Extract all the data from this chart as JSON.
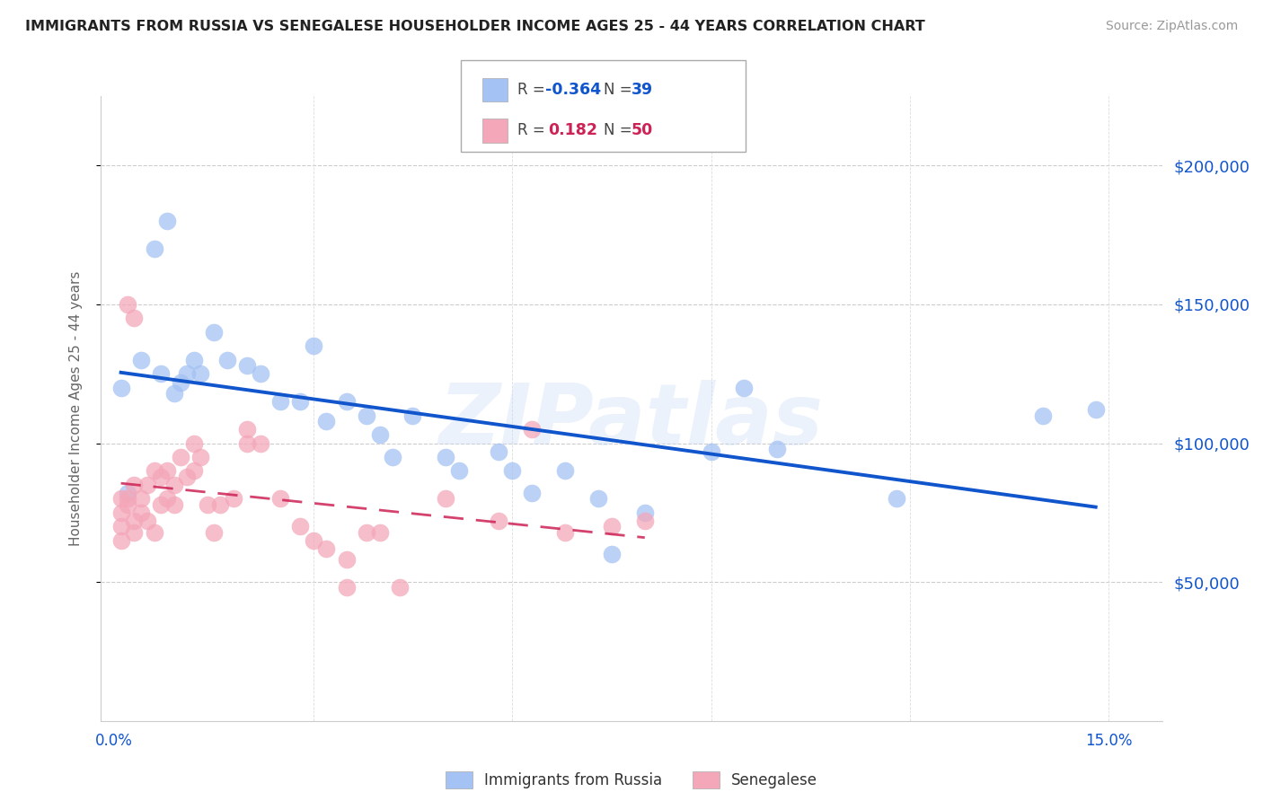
{
  "title": "IMMIGRANTS FROM RUSSIA VS SENEGALESE HOUSEHOLDER INCOME AGES 25 - 44 YEARS CORRELATION CHART",
  "source": "Source: ZipAtlas.com",
  "ylabel": "Householder Income Ages 25 - 44 years",
  "y_ticks": [
    50000,
    100000,
    150000,
    200000
  ],
  "y_tick_labels": [
    "$50,000",
    "$100,000",
    "$150,000",
    "$200,000"
  ],
  "x_tick_positions": [
    0.0,
    0.03,
    0.06,
    0.09,
    0.12,
    0.15
  ],
  "x_tick_labels": [
    "0.0%",
    "",
    "",
    "",
    "",
    "15.0%"
  ],
  "legend_r1_val": "-0.364",
  "legend_n1_val": "39",
  "legend_r2_val": "0.182",
  "legend_n2_val": "50",
  "blue_fill": "#a4c2f4",
  "pink_fill": "#f4a7b9",
  "blue_line": "#1155cc",
  "pink_line": "#cc2255",
  "title_color": "#222222",
  "source_color": "#999999",
  "right_label_color": "#1155cc",
  "background": "#ffffff",
  "blue_scatter_x": [
    0.001,
    0.004,
    0.007,
    0.009,
    0.01,
    0.011,
    0.012,
    0.013,
    0.015,
    0.017,
    0.02,
    0.022,
    0.025,
    0.028,
    0.032,
    0.038,
    0.04,
    0.045,
    0.05,
    0.052,
    0.058,
    0.063,
    0.068,
    0.073,
    0.08,
    0.09,
    0.095,
    0.1,
    0.118,
    0.14,
    0.148,
    0.002,
    0.006,
    0.008,
    0.03,
    0.035,
    0.042,
    0.06,
    0.075
  ],
  "blue_scatter_y": [
    120000,
    130000,
    125000,
    118000,
    122000,
    125000,
    130000,
    125000,
    140000,
    130000,
    128000,
    125000,
    115000,
    115000,
    108000,
    110000,
    103000,
    110000,
    95000,
    90000,
    97000,
    82000,
    90000,
    80000,
    75000,
    97000,
    120000,
    98000,
    80000,
    110000,
    112000,
    82000,
    170000,
    180000,
    135000,
    115000,
    95000,
    90000,
    60000
  ],
  "pink_scatter_x": [
    0.001,
    0.001,
    0.001,
    0.001,
    0.002,
    0.002,
    0.003,
    0.003,
    0.003,
    0.004,
    0.004,
    0.005,
    0.005,
    0.006,
    0.006,
    0.007,
    0.007,
    0.008,
    0.008,
    0.009,
    0.009,
    0.01,
    0.011,
    0.012,
    0.012,
    0.013,
    0.014,
    0.015,
    0.016,
    0.018,
    0.02,
    0.022,
    0.025,
    0.028,
    0.03,
    0.032,
    0.035,
    0.038,
    0.04,
    0.043,
    0.05,
    0.058,
    0.063,
    0.068,
    0.075,
    0.08,
    0.002,
    0.003,
    0.02,
    0.035
  ],
  "pink_scatter_y": [
    75000,
    80000,
    70000,
    65000,
    80000,
    78000,
    85000,
    72000,
    68000,
    80000,
    75000,
    85000,
    72000,
    90000,
    68000,
    88000,
    78000,
    90000,
    80000,
    85000,
    78000,
    95000,
    88000,
    100000,
    90000,
    95000,
    78000,
    68000,
    78000,
    80000,
    105000,
    100000,
    80000,
    70000,
    65000,
    62000,
    58000,
    68000,
    68000,
    48000,
    80000,
    72000,
    105000,
    68000,
    70000,
    72000,
    150000,
    145000,
    100000,
    48000
  ],
  "xlim": [
    -0.002,
    0.158
  ],
  "ylim": [
    0,
    225000
  ],
  "watermark": "ZIPatlas"
}
